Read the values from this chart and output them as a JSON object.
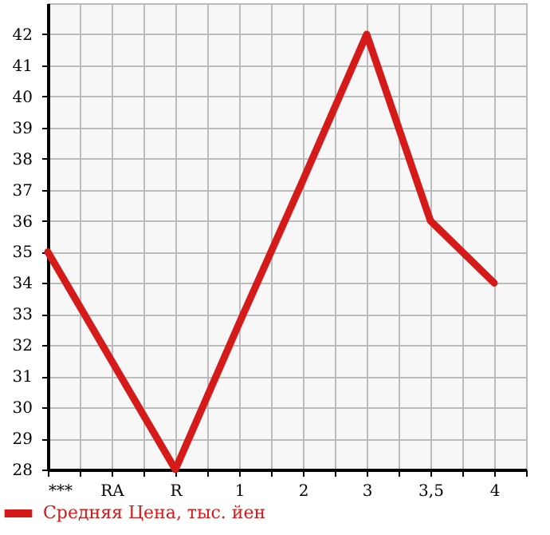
{
  "chart_data": {
    "type": "line",
    "categories": [
      "***",
      "RA",
      "R",
      "1",
      "2",
      "3",
      "3,5",
      "4"
    ],
    "series": [
      {
        "name": "Средняя Цена, тыс. йен",
        "color": "#d51a1a",
        "values": [
          35,
          31.5,
          28,
          32.7,
          37.3,
          42,
          36,
          34
        ]
      }
    ],
    "ylim": [
      28,
      43
    ],
    "yticks": [
      28,
      29,
      30,
      31,
      32,
      33,
      34,
      35,
      36,
      37,
      38,
      39,
      40,
      41,
      42
    ],
    "grid": true,
    "legend": "bottom left",
    "marker": "none",
    "line_style": "solid"
  }
}
